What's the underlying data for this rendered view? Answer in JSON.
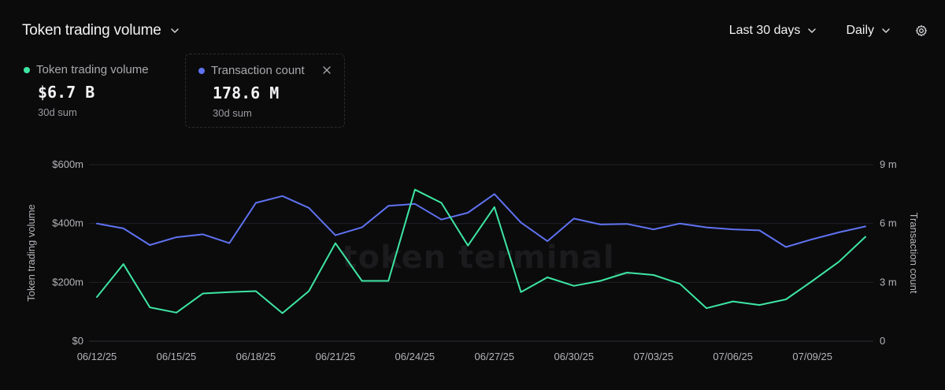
{
  "header": {
    "title": "Token trading volume",
    "range_label": "Last 30 days",
    "granularity_label": "Daily"
  },
  "metrics": [
    {
      "label": "Token trading volume",
      "value": "$6.7 B",
      "sub": "30d sum",
      "color": "#3ee6a3"
    },
    {
      "label": "Transaction count",
      "value": "178.6 M",
      "sub": "30d sum",
      "color": "#5f72f0"
    }
  ],
  "watermark": "token terminal_",
  "icons": {
    "dropdown": "chevron-down-icon",
    "settings": "gear-icon",
    "close": "close-icon"
  },
  "chart_data": {
    "type": "line",
    "x": [
      "06/12/25",
      "06/13/25",
      "06/14/25",
      "06/15/25",
      "06/16/25",
      "06/17/25",
      "06/18/25",
      "06/19/25",
      "06/20/25",
      "06/21/25",
      "06/22/25",
      "06/23/25",
      "06/24/25",
      "06/25/25",
      "06/26/25",
      "06/27/25",
      "06/28/25",
      "06/29/25",
      "06/30/25",
      "07/01/25",
      "07/02/25",
      "07/03/25",
      "07/04/25",
      "07/05/25",
      "07/06/25",
      "07/07/25",
      "07/08/25",
      "07/09/25",
      "07/10/25",
      "07/11/25"
    ],
    "x_tick_labels": [
      "06/12/25",
      "06/15/25",
      "06/18/25",
      "06/21/25",
      "06/24/25",
      "06/27/25",
      "06/30/25",
      "07/03/25",
      "07/06/25",
      "07/09/25"
    ],
    "series": [
      {
        "name": "Token trading volume",
        "axis": "left",
        "color": "#3ee6a3",
        "values": [
          150,
          262,
          115,
          97,
          162,
          167,
          170,
          95,
          170,
          333,
          205,
          205,
          515,
          470,
          325,
          456,
          167,
          217,
          188,
          205,
          233,
          225,
          195,
          112,
          135,
          123,
          142,
          205,
          270,
          355
        ]
      },
      {
        "name": "Transaction count",
        "axis": "right",
        "color": "#5f72f0",
        "values": [
          6.0,
          5.75,
          4.9,
          5.3,
          5.45,
          5.0,
          7.05,
          7.4,
          6.8,
          5.4,
          5.8,
          6.9,
          7.0,
          6.2,
          6.55,
          7.5,
          6.05,
          5.1,
          6.25,
          5.95,
          5.98,
          5.7,
          6.0,
          5.8,
          5.7,
          5.65,
          4.8,
          5.2,
          5.55,
          5.85
        ]
      }
    ],
    "y_left": {
      "label": "Token trading volume",
      "ticks": [
        "$0",
        "$200m",
        "$400m",
        "$600m"
      ],
      "lim": [
        0,
        600
      ],
      "unit": "$m"
    },
    "y_right": {
      "label": "Transaction count",
      "ticks": [
        "0",
        "3 m",
        "6 m",
        "9 m"
      ],
      "lim": [
        0,
        9
      ],
      "unit": "m"
    },
    "grid": true,
    "legend": "top-left"
  }
}
